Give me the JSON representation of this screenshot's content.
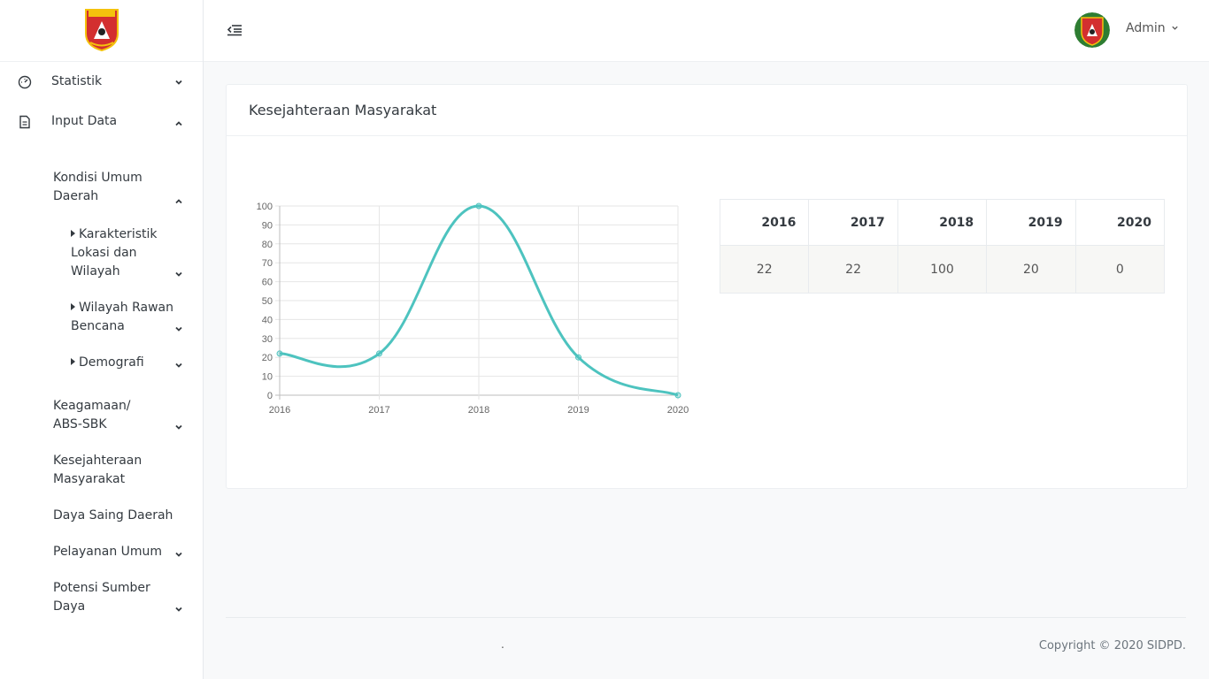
{
  "sidebar": {
    "logo_text": "AGAM",
    "items": [
      {
        "label": "Statistik",
        "icon": "dashboard-gauge-icon"
      },
      {
        "label": "Input Data",
        "icon": "document-icon"
      }
    ],
    "sub_items": {
      "kondisi": "Kondisi Umum Daerah",
      "karakteristik": "Karakteristik Lokasi dan Wilayah",
      "rawan": "Wilayah Rawan Bencana",
      "demografi": "Demografi",
      "keagamaan": "Keagamaan/ ABS-SBK",
      "kesejahteraan": "Kesejahteraan Masyarakat",
      "daya_saing": "Daya Saing Daerah",
      "pelayanan": "Pelayanan Umum",
      "potensi": "Potensi Sumber Daya"
    }
  },
  "header": {
    "user": "Admin"
  },
  "card": {
    "title": "Kesejahteraan Masyarakat"
  },
  "table": {
    "headers": [
      "2016",
      "2017",
      "2018",
      "2019",
      "2020"
    ],
    "values": [
      "22",
      "22",
      "100",
      "20",
      "0"
    ]
  },
  "chart_data": {
    "type": "line",
    "x": [
      "2016",
      "2017",
      "2018",
      "2019",
      "2020"
    ],
    "values": [
      22,
      22,
      100,
      20,
      0
    ],
    "y_ticks": [
      "0",
      "10",
      "20",
      "30",
      "40",
      "50",
      "60",
      "70",
      "80",
      "90",
      "100"
    ],
    "ylim": [
      0,
      100
    ],
    "grid": true,
    "color": "#4dc3bf"
  },
  "footer": {
    "dot": ".",
    "copyright": "Copyright © 2020 SIDPD."
  }
}
